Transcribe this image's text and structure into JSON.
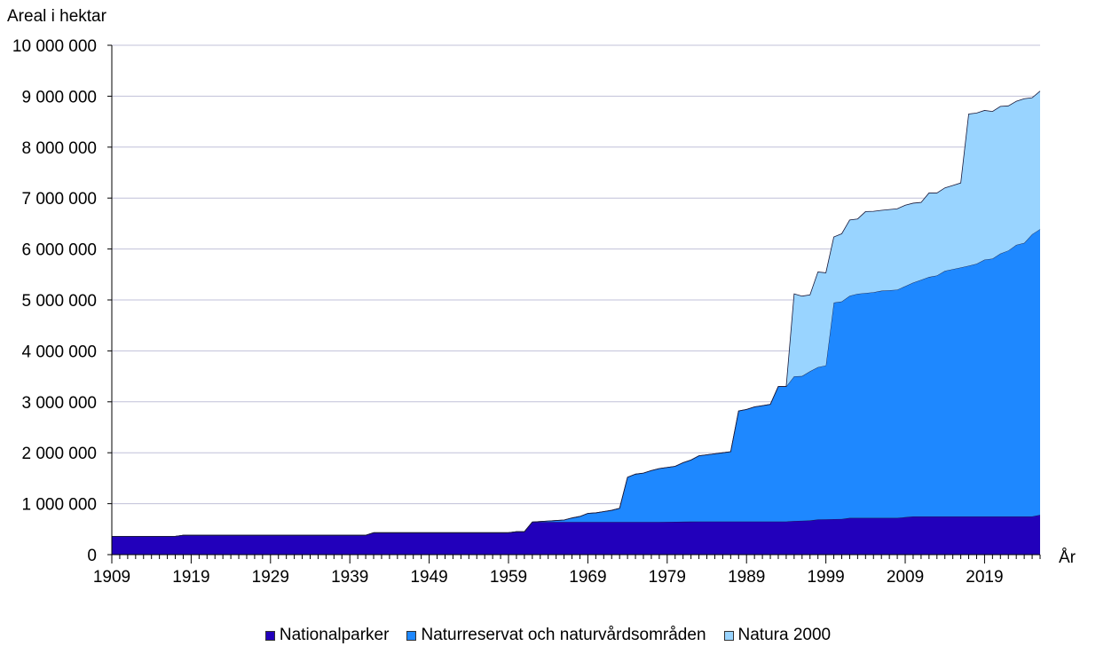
{
  "chart_data": {
    "type": "area",
    "stacked": true,
    "ylabel": "Areal i hektar",
    "xlabel": "År",
    "ylim": [
      0,
      10000000
    ],
    "yticks": [
      0,
      1000000,
      2000000,
      3000000,
      4000000,
      5000000,
      6000000,
      7000000,
      8000000,
      9000000,
      10000000
    ],
    "ytick_labels": [
      "0",
      "1 000 000",
      "2 000 000",
      "3 000 000",
      "4 000 000",
      "5 000 000",
      "6 000 000",
      "7 000 000",
      "8 000 000",
      "9 000 000",
      "10 000 000"
    ],
    "xlim": [
      1909,
      2026
    ],
    "xticks": [
      1909,
      1919,
      1929,
      1939,
      1949,
      1959,
      1969,
      1979,
      1989,
      1999,
      2009,
      2019
    ],
    "xtick_labels": [
      "1909",
      "1919",
      "1929",
      "1939",
      "1949",
      "1959",
      "1969",
      "1979",
      "1989",
      "1999",
      "2009",
      "2019"
    ],
    "grid": true,
    "legend_position": "bottom",
    "series": [
      {
        "name": "Nationalparker",
        "color": "#2200bb",
        "points": [
          [
            1909,
            360000
          ],
          [
            1917,
            360000
          ],
          [
            1918,
            380000
          ],
          [
            1941,
            380000
          ],
          [
            1942,
            430000
          ],
          [
            1959,
            430000
          ],
          [
            1960,
            450000
          ],
          [
            1961,
            450000
          ],
          [
            1962,
            640000
          ],
          [
            1978,
            640000
          ],
          [
            1983,
            650000
          ],
          [
            1994,
            650000
          ],
          [
            1995,
            660000
          ],
          [
            1997,
            670000
          ],
          [
            1998,
            690000
          ],
          [
            2001,
            700000
          ],
          [
            2002,
            720000
          ],
          [
            2008,
            720000
          ],
          [
            2010,
            750000
          ],
          [
            2025,
            750000
          ],
          [
            2026,
            780000
          ]
        ]
      },
      {
        "name": "Naturreservat och naturvårdsområden",
        "color": "#1e88ff",
        "points": [
          [
            1909,
            0
          ],
          [
            1962,
            0
          ],
          [
            1964,
            20000
          ],
          [
            1966,
            40000
          ],
          [
            1967,
            80000
          ],
          [
            1968,
            110000
          ],
          [
            1969,
            170000
          ],
          [
            1970,
            180000
          ],
          [
            1972,
            230000
          ],
          [
            1973,
            270000
          ],
          [
            1974,
            880000
          ],
          [
            1975,
            940000
          ],
          [
            1976,
            960000
          ],
          [
            1977,
            1010000
          ],
          [
            1978,
            1050000
          ],
          [
            1980,
            1090000
          ],
          [
            1981,
            1160000
          ],
          [
            1982,
            1210000
          ],
          [
            1983,
            1290000
          ],
          [
            1984,
            1310000
          ],
          [
            1987,
            1370000
          ],
          [
            1988,
            2170000
          ],
          [
            1989,
            2200000
          ],
          [
            1990,
            2250000
          ],
          [
            1992,
            2300000
          ],
          [
            1993,
            2650000
          ],
          [
            1994,
            2650000
          ],
          [
            1995,
            2840000
          ],
          [
            1996,
            2840000
          ],
          [
            1997,
            2930000
          ],
          [
            1998,
            2990000
          ],
          [
            1999,
            3020000
          ],
          [
            2000,
            4250000
          ],
          [
            2001,
            4270000
          ],
          [
            2002,
            4360000
          ],
          [
            2003,
            4400000
          ],
          [
            2005,
            4430000
          ],
          [
            2006,
            4460000
          ],
          [
            2008,
            4480000
          ],
          [
            2010,
            4590000
          ],
          [
            2012,
            4700000
          ],
          [
            2013,
            4730000
          ],
          [
            2014,
            4820000
          ],
          [
            2017,
            4920000
          ],
          [
            2018,
            4960000
          ],
          [
            2019,
            5040000
          ],
          [
            2020,
            5060000
          ],
          [
            2021,
            5160000
          ],
          [
            2022,
            5220000
          ],
          [
            2023,
            5330000
          ],
          [
            2024,
            5370000
          ],
          [
            2025,
            5540000
          ],
          [
            2026,
            5610000
          ]
        ]
      },
      {
        "name": "Natura 2000",
        "color": "#99d4ff",
        "points": [
          [
            1909,
            0
          ],
          [
            1994,
            0
          ],
          [
            1995,
            1620000
          ],
          [
            1996,
            1570000
          ],
          [
            1997,
            1500000
          ],
          [
            1998,
            1870000
          ],
          [
            1999,
            1820000
          ],
          [
            2000,
            1290000
          ],
          [
            2001,
            1330000
          ],
          [
            2002,
            1490000
          ],
          [
            2003,
            1470000
          ],
          [
            2004,
            1600000
          ],
          [
            2006,
            1580000
          ],
          [
            2008,
            1590000
          ],
          [
            2009,
            1590000
          ],
          [
            2010,
            1560000
          ],
          [
            2011,
            1520000
          ],
          [
            2012,
            1650000
          ],
          [
            2013,
            1620000
          ],
          [
            2014,
            1630000
          ],
          [
            2016,
            1660000
          ],
          [
            2017,
            2980000
          ],
          [
            2018,
            2960000
          ],
          [
            2019,
            2930000
          ],
          [
            2020,
            2890000
          ],
          [
            2021,
            2890000
          ],
          [
            2022,
            2840000
          ],
          [
            2023,
            2820000
          ],
          [
            2024,
            2830000
          ],
          [
            2025,
            2680000
          ],
          [
            2026,
            2710000
          ]
        ]
      }
    ]
  }
}
